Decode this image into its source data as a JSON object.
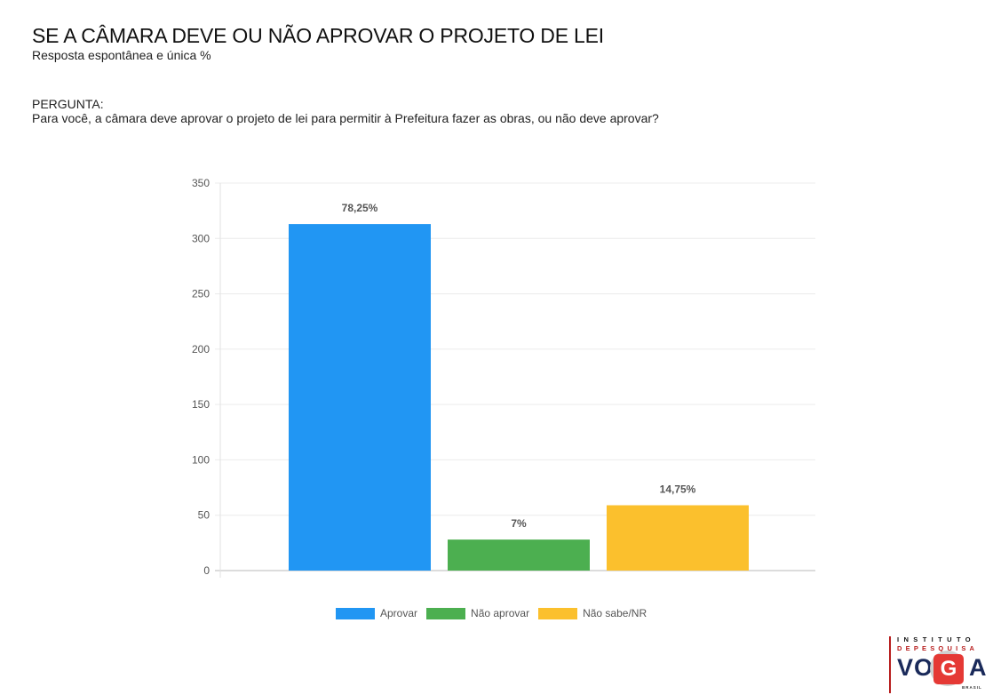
{
  "header": {
    "title": "SE A CÂMARA DEVE OU NÃO APROVAR O PROJETO DE LEI",
    "subtitle": "Resposta espontânea e única %"
  },
  "question": {
    "label": "PERGUNTA:",
    "text": "Para você, a câmara deve aprovar o projeto de lei para permitir à Prefeitura fazer as obras, ou não deve aprovar?"
  },
  "chart_data": {
    "type": "bar",
    "title": "",
    "xlabel": "",
    "ylabel": "",
    "ylim": [
      0,
      350
    ],
    "yticks": [
      0,
      50,
      100,
      150,
      200,
      250,
      300,
      350
    ],
    "grid": true,
    "legend_position": "bottom",
    "categories": [
      "Aprovar",
      "Não aprovar",
      "Não sabe/NR"
    ],
    "values": [
      313,
      28,
      59
    ],
    "data_labels": [
      "78,25%",
      "7%",
      "14,75%"
    ],
    "colors": [
      "#2196F3",
      "#4CAF50",
      "#FBC02D"
    ],
    "legend": [
      "Aprovar",
      "Não aprovar",
      "Não sabe/NR"
    ]
  },
  "logo": {
    "line1": "INSTITUTO",
    "line2": "DEPESQUISA",
    "word_left": "VO",
    "word_g": "G",
    "word_right": "A",
    "country": "BRASIL"
  }
}
